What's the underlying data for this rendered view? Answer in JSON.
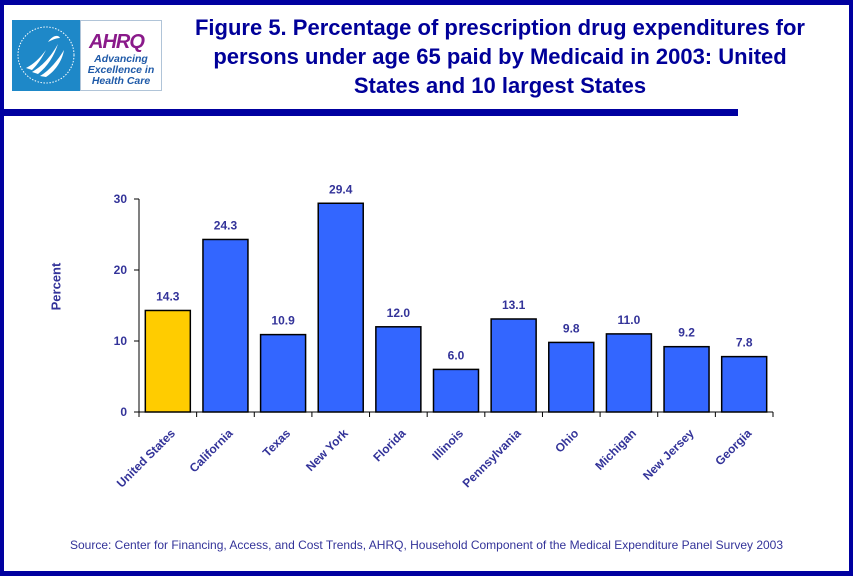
{
  "header": {
    "logo_hhs": "HHS seal",
    "logo_ahrq_name": "AHRQ",
    "logo_ahrq_tagline": [
      "Advancing",
      "Excellence in",
      "Health Care"
    ],
    "title": "Figure 5. Percentage of prescription drug expenditures for persons under age 65 paid by Medicaid in 2003: United States and 10 largest States"
  },
  "colors": {
    "frame": "#0000a0",
    "title": "#000099",
    "highlight_bar": "#ffcc00",
    "bar": "#3366ff",
    "label": "#333399"
  },
  "chart_data": {
    "type": "bar",
    "title": "Figure 5. Percentage of prescription drug expenditures for persons under age 65 paid by Medicaid in 2003: United States and 10 largest States",
    "xlabel": "",
    "ylabel": "Percent",
    "ylim": [
      0,
      30
    ],
    "yticks": [
      0,
      10,
      20,
      30
    ],
    "grid": false,
    "legend": "none",
    "categories": [
      "United States",
      "California",
      "Texas",
      "New York",
      "Florida",
      "Illinois",
      "Pennsylvania",
      "Ohio",
      "Michigan",
      "New Jersey",
      "Georgia"
    ],
    "values": [
      14.3,
      24.3,
      10.9,
      29.4,
      12.0,
      6.0,
      13.1,
      9.8,
      11.0,
      9.2,
      7.8
    ],
    "data_labels": [
      "14.3",
      "24.3",
      "10.9",
      "29.4",
      "12.0",
      "6.0",
      "13.1",
      "9.8",
      "11.0",
      "9.2",
      "7.8"
    ],
    "highlight_category": "United States"
  },
  "footer": {
    "source": "Source: Center for Financing, Access, and Cost Trends, AHRQ, Household Component of the Medical Expenditure Panel Survey 2003"
  }
}
